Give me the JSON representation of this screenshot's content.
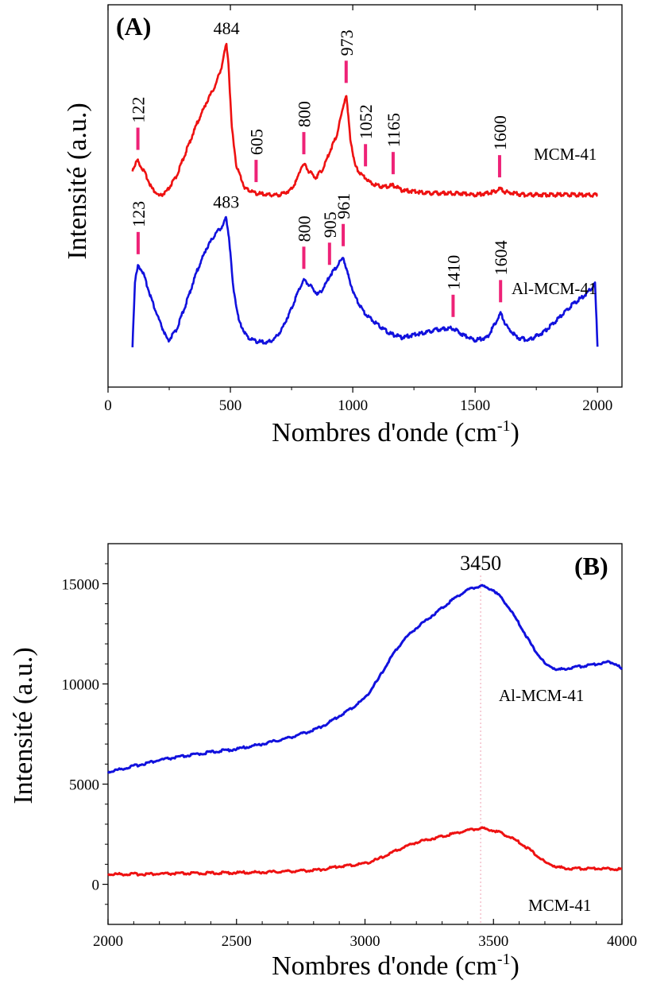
{
  "chart_data": [
    {
      "type": "line",
      "panel_label": "(A)",
      "xlabel": "Nombres d'onde (cm",
      "xlabel_sup": "-1",
      "xlabel_close": ")",
      "ylabel": "Intensité (a.u.)",
      "xlim": [
        0,
        2100
      ],
      "x_ticks": [
        0,
        500,
        1000,
        1500,
        2000
      ],
      "x_tick_labels": [
        "0",
        "500",
        "1000",
        "1500",
        "2000"
      ],
      "y_ticks_shown": false,
      "grid": false,
      "series": [
        {
          "name": "MCM-41",
          "color": "#ee1111",
          "x": [
            100,
            120,
            150,
            180,
            210,
            240,
            280,
            320,
            360,
            400,
            440,
            465,
            478,
            484,
            492,
            505,
            525,
            560,
            605,
            650,
            700,
            745,
            770,
            790,
            805,
            820,
            850,
            880,
            910,
            935,
            955,
            973,
            990,
            1010,
            1035,
            1052,
            1070,
            1100,
            1130,
            1165,
            1200,
            1260,
            1320,
            1380,
            1440,
            1500,
            1550,
            1580,
            1600,
            1620,
            1650,
            1700,
            1760,
            1820,
            1880,
            1940,
            2000
          ],
          "y": [
            0.2,
            0.26,
            0.18,
            0.08,
            0.03,
            0.06,
            0.16,
            0.32,
            0.48,
            0.62,
            0.74,
            0.86,
            0.96,
            1.0,
            0.88,
            0.48,
            0.22,
            0.08,
            0.05,
            0.04,
            0.04,
            0.07,
            0.13,
            0.22,
            0.23,
            0.19,
            0.15,
            0.21,
            0.33,
            0.42,
            0.56,
            0.68,
            0.4,
            0.22,
            0.17,
            0.15,
            0.12,
            0.1,
            0.09,
            0.1,
            0.07,
            0.06,
            0.05,
            0.05,
            0.05,
            0.04,
            0.05,
            0.06,
            0.08,
            0.06,
            0.05,
            0.04,
            0.04,
            0.04,
            0.04,
            0.04,
            0.04
          ]
        },
        {
          "name": "Al-MCM-41",
          "color": "#1111dd",
          "x": [
            100,
            110,
            123,
            140,
            165,
            190,
            215,
            245,
            280,
            320,
            360,
            400,
            440,
            470,
            483,
            495,
            510,
            535,
            570,
            610,
            650,
            680,
            710,
            750,
            780,
            800,
            825,
            860,
            890,
            905,
            930,
            961,
            985,
            1010,
            1050,
            1100,
            1150,
            1200,
            1250,
            1300,
            1350,
            1410,
            1450,
            1500,
            1550,
            1580,
            1604,
            1630,
            1670,
            1720,
            1780,
            1840,
            1900,
            1950,
            1990,
            2000
          ],
          "y": [
            0.02,
            0.5,
            0.62,
            0.58,
            0.44,
            0.3,
            0.18,
            0.05,
            0.14,
            0.34,
            0.56,
            0.74,
            0.86,
            0.92,
            0.98,
            0.82,
            0.48,
            0.2,
            0.08,
            0.05,
            0.04,
            0.07,
            0.14,
            0.3,
            0.44,
            0.51,
            0.47,
            0.4,
            0.48,
            0.54,
            0.6,
            0.68,
            0.52,
            0.38,
            0.26,
            0.18,
            0.11,
            0.08,
            0.1,
            0.12,
            0.14,
            0.15,
            0.1,
            0.06,
            0.08,
            0.18,
            0.26,
            0.16,
            0.08,
            0.06,
            0.12,
            0.22,
            0.33,
            0.4,
            0.48,
            0.02
          ]
        }
      ],
      "peak_labels": [
        {
          "series": "MCM-41",
          "text": "122",
          "x": 122,
          "rotated": true
        },
        {
          "series": "MCM-41",
          "text": "484",
          "x": 484,
          "rotated": false
        },
        {
          "series": "MCM-41",
          "text": "605",
          "x": 605,
          "rotated": true
        },
        {
          "series": "MCM-41",
          "text": "800",
          "x": 800,
          "rotated": true
        },
        {
          "series": "MCM-41",
          "text": "973",
          "x": 973,
          "rotated": true
        },
        {
          "series": "MCM-41",
          "text": "1052",
          "x": 1052,
          "rotated": true
        },
        {
          "series": "MCM-41",
          "text": "1165",
          "x": 1165,
          "rotated": true
        },
        {
          "series": "MCM-41",
          "text": "1600",
          "x": 1600,
          "rotated": true
        },
        {
          "series": "Al-MCM-41",
          "text": "123",
          "x": 123,
          "rotated": true
        },
        {
          "series": "Al-MCM-41",
          "text": "483",
          "x": 483,
          "rotated": false
        },
        {
          "series": "Al-MCM-41",
          "text": "800",
          "x": 800,
          "rotated": true
        },
        {
          "series": "Al-MCM-41",
          "text": "905",
          "x": 905,
          "rotated": true
        },
        {
          "series": "Al-MCM-41",
          "text": "961",
          "x": 961,
          "rotated": true
        },
        {
          "series": "Al-MCM-41",
          "text": "1410",
          "x": 1410,
          "rotated": true
        },
        {
          "series": "Al-MCM-41",
          "text": "1604",
          "x": 1604,
          "rotated": true
        }
      ],
      "peak_marker_color": "#ee2277"
    },
    {
      "type": "line",
      "panel_label": "(B)",
      "xlabel": "Nombres d'onde (cm",
      "xlabel_sup": "-1",
      "xlabel_close": ")",
      "ylabel": "Intensité (a.u.)",
      "xlim": [
        2000,
        4000
      ],
      "ylim": [
        -2000,
        17000
      ],
      "x_ticks": [
        2000,
        2500,
        3000,
        3500,
        4000
      ],
      "x_tick_labels": [
        "2000",
        "2500",
        "3000",
        "3500",
        "4000"
      ],
      "y_ticks": [
        0,
        5000,
        10000,
        15000
      ],
      "y_tick_labels": [
        "0",
        "5000",
        "10000",
        "15000"
      ],
      "grid": false,
      "reference_line": {
        "x": 3450,
        "text": "3450"
      },
      "series": [
        {
          "name": "Al-MCM-41",
          "color": "#1111dd",
          "x": [
            2000,
            2100,
            2200,
            2300,
            2400,
            2500,
            2600,
            2700,
            2800,
            2850,
            2900,
            2950,
            3000,
            3050,
            3100,
            3150,
            3200,
            3250,
            3300,
            3350,
            3400,
            3450,
            3500,
            3550,
            3600,
            3650,
            3700,
            3750,
            3800,
            3850,
            3900,
            3950,
            3980,
            4000
          ],
          "y": [
            5600,
            5900,
            6200,
            6400,
            6600,
            6750,
            7000,
            7300,
            7700,
            8000,
            8400,
            8800,
            9300,
            10200,
            11300,
            12200,
            12800,
            13300,
            13800,
            14300,
            14700,
            14900,
            14700,
            14000,
            13000,
            11900,
            11000,
            10700,
            10800,
            10900,
            11000,
            11100,
            11000,
            10700
          ]
        },
        {
          "name": "MCM-41",
          "color": "#ee1111",
          "x": [
            2000,
            2200,
            2400,
            2600,
            2800,
            2850,
            2900,
            2950,
            3000,
            3050,
            3100,
            3150,
            3200,
            3250,
            3300,
            3350,
            3400,
            3450,
            3500,
            3550,
            3600,
            3650,
            3700,
            3750,
            3800,
            3900,
            4000
          ],
          "y": [
            500,
            520,
            560,
            600,
            700,
            780,
            900,
            950,
            1050,
            1250,
            1550,
            1850,
            2100,
            2250,
            2400,
            2550,
            2700,
            2800,
            2700,
            2450,
            2100,
            1650,
            1100,
            850,
            780,
            800,
            760
          ]
        }
      ]
    }
  ]
}
